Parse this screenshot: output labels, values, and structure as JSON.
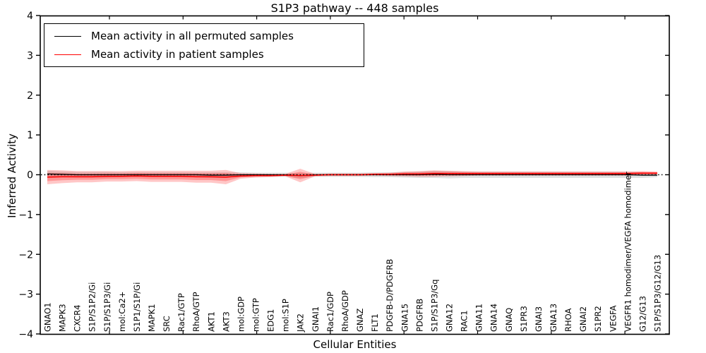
{
  "figure": {
    "title": "S1P3 pathway -- 448 samples",
    "xlabel": "Cellular Entities",
    "ylabel": "Inferred Activity"
  },
  "legend": {
    "items": [
      {
        "label": "Mean activity in all permuted samples",
        "color": "#000000"
      },
      {
        "label": "Mean activity in patient samples",
        "color": "#ff0000"
      }
    ]
  },
  "chart_data": {
    "type": "line",
    "title": "S1P3 pathway -- 448 samples",
    "xlabel": "Cellular Entities",
    "ylabel": "Inferred Activity",
    "ylim": [
      -4,
      4
    ],
    "yticks": [
      -4,
      -3,
      -2,
      -1,
      0,
      1,
      2,
      3,
      4
    ],
    "grid": false,
    "zero_line": true,
    "legend_position": "upper left",
    "categories": [
      "GNAO1",
      "MAPK3",
      "CXCR4",
      "S1P/S1P2/Gi",
      "S1P/S1P3/Gi",
      "mol:Ca2+",
      "S1P1/S1P/Gi",
      "MAPK1",
      "SRC",
      "Rac1/GTP",
      "RhoA/GTP",
      "AKT1",
      "AKT3",
      "mol:GDP",
      "mol:GTP",
      "EDG1",
      "mol:S1P",
      "JAK2",
      "GNAI1",
      "Rac1/GDP",
      "RhoA/GDP",
      "GNAZ",
      "FLT1",
      "PDGFB-D/PDGFRB",
      "GNA15",
      "PDGFRB",
      "S1P/S1P3/Gq",
      "GNA12",
      "RAC1",
      "GNA11",
      "GNA14",
      "GNAQ",
      "S1PR3",
      "GNAI3",
      "GNA13",
      "RHOA",
      "GNAI2",
      "S1PR2",
      "VEGFA",
      "VEGFR1 homodimer/VEGFA homodimer",
      "G12/G13",
      "S1P/S1P3/G12/G13"
    ],
    "series": [
      {
        "name": "Mean activity in all permuted samples",
        "color": "#000000",
        "band_color": "#bbbbbb",
        "values": [
          0.02,
          0.01,
          0,
          0,
          0,
          0,
          0,
          0,
          0,
          0,
          0,
          -0.01,
          -0.01,
          0,
          0,
          0,
          0,
          -0.02,
          0,
          0,
          0,
          0,
          0,
          0,
          0,
          0,
          0.01,
          0,
          0,
          0,
          0,
          0,
          0,
          0,
          0,
          0,
          0,
          0,
          0,
          0,
          -0.01,
          -0.01
        ],
        "std": [
          0.08,
          0.07,
          0.07,
          0.07,
          0.07,
          0.06,
          0.06,
          0.06,
          0.06,
          0.06,
          0.06,
          0.07,
          0.07,
          0.06,
          0.05,
          0.05,
          0.05,
          0.06,
          0.05,
          0.05,
          0.05,
          0.05,
          0.06,
          0.06,
          0.07,
          0.08,
          0.09,
          0.09,
          0.08,
          0.08,
          0.08,
          0.08,
          0.08,
          0.08,
          0.08,
          0.08,
          0.08,
          0.08,
          0.08,
          0.08,
          0.07,
          0.05
        ]
      },
      {
        "name": "Mean activity in patient samples",
        "color": "#ff0000",
        "band_color": "#ff0000",
        "values": [
          -0.06,
          -0.05,
          -0.05,
          -0.05,
          -0.04,
          -0.04,
          -0.03,
          -0.04,
          -0.04,
          -0.04,
          -0.05,
          -0.05,
          -0.06,
          -0.03,
          -0.02,
          -0.02,
          -0.01,
          -0.02,
          -0.01,
          0,
          0,
          0,
          0.01,
          0.01,
          0.02,
          0.02,
          0.03,
          0.03,
          0.03,
          0.03,
          0.03,
          0.03,
          0.03,
          0.03,
          0.03,
          0.03,
          0.03,
          0.03,
          0.03,
          0.03,
          0.04,
          0.04
        ],
        "std": [
          0.18,
          0.16,
          0.14,
          0.14,
          0.13,
          0.13,
          0.13,
          0.14,
          0.14,
          0.14,
          0.15,
          0.15,
          0.18,
          0.07,
          0.05,
          0.04,
          0.03,
          0.17,
          0.03,
          0.03,
          0.03,
          0.03,
          0.03,
          0.04,
          0.06,
          0.07,
          0.08,
          0.07,
          0.06,
          0.05,
          0.05,
          0.05,
          0.05,
          0.05,
          0.05,
          0.05,
          0.05,
          0.05,
          0.05,
          0.05,
          0.05,
          0.04
        ]
      }
    ]
  }
}
